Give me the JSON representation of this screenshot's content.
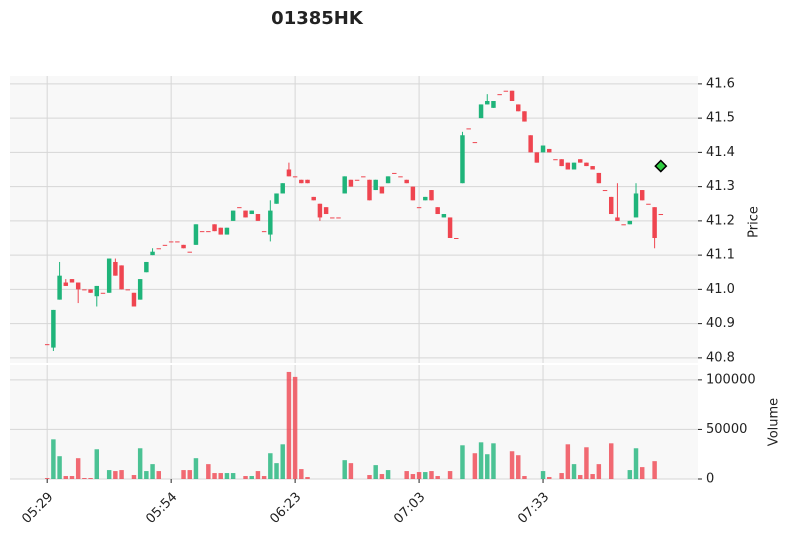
{
  "chart_data": {
    "type": "candlestick",
    "title": "01385HK",
    "price_label": "Price",
    "volume_label": "Volume",
    "up_color": "#1fb47a",
    "down_color": "#ef4550",
    "open": [
      40.84,
      40.83,
      40.97,
      41.02,
      41.03,
      41.02,
      41.0,
      41.0,
      40.98,
      40.99,
      40.99,
      41.08,
      41.07,
      41.0,
      40.99,
      40.97,
      41.05,
      41.1,
      41.12,
      41.13,
      41.14,
      41.14,
      41.13,
      41.11,
      41.13,
      41.17,
      41.17,
      41.19,
      41.18,
      41.16,
      41.2,
      41.24,
      41.23,
      41.22,
      41.22,
      41.17,
      41.16,
      41.25,
      41.28,
      41.35,
      41.33,
      41.32,
      41.32,
      41.27,
      41.25,
      41.24,
      41.21,
      41.21,
      41.28,
      41.32,
      41.32,
      41.33,
      41.32,
      41.29,
      41.3,
      41.31,
      41.34,
      41.33,
      41.32,
      41.3,
      41.24,
      41.26,
      41.29,
      41.24,
      41.21,
      41.21,
      41.15,
      41.31,
      41.47,
      41.43,
      41.5,
      41.54,
      41.53,
      41.57,
      41.58,
      41.58,
      41.54,
      41.52,
      41.45,
      41.4,
      41.4,
      41.41,
      41.38,
      41.38,
      41.37,
      41.35,
      41.38,
      41.37,
      41.36,
      41.34,
      41.29,
      41.27,
      41.21,
      41.19,
      41.19,
      41.21,
      41.29,
      41.25,
      41.24,
      41.22
    ],
    "high": [
      40.84,
      40.94,
      41.08,
      41.03,
      41.03,
      41.02,
      41.0,
      41.0,
      41.01,
      40.99,
      41.09,
      41.09,
      41.07,
      41.0,
      40.99,
      41.03,
      41.08,
      41.12,
      41.12,
      41.13,
      41.14,
      41.14,
      41.13,
      41.11,
      41.19,
      41.17,
      41.17,
      41.19,
      41.18,
      41.18,
      41.23,
      41.24,
      41.23,
      41.23,
      41.22,
      41.17,
      41.26,
      41.28,
      41.31,
      41.37,
      41.33,
      41.32,
      41.32,
      41.27,
      41.25,
      41.24,
      41.21,
      41.21,
      41.33,
      41.32,
      41.32,
      41.33,
      41.32,
      41.32,
      41.3,
      41.33,
      41.34,
      41.33,
      41.32,
      41.3,
      41.24,
      41.27,
      41.29,
      41.24,
      41.22,
      41.21,
      41.15,
      41.46,
      41.47,
      41.43,
      41.54,
      41.57,
      41.55,
      41.57,
      41.58,
      41.58,
      41.54,
      41.52,
      41.45,
      41.4,
      41.42,
      41.41,
      41.38,
      41.38,
      41.37,
      41.37,
      41.38,
      41.37,
      41.36,
      41.34,
      41.29,
      41.27,
      41.31,
      41.19,
      41.2,
      41.31,
      41.29,
      41.25,
      41.24,
      41.22
    ],
    "low": [
      40.84,
      40.82,
      40.97,
      41.01,
      41.02,
      40.96,
      41.0,
      40.99,
      40.95,
      40.99,
      40.99,
      41.04,
      41.0,
      41.0,
      40.95,
      40.97,
      41.05,
      41.1,
      41.12,
      41.13,
      41.14,
      41.14,
      41.12,
      41.11,
      41.13,
      41.17,
      41.17,
      41.17,
      41.16,
      41.16,
      41.2,
      41.24,
      41.21,
      41.22,
      41.2,
      41.17,
      41.14,
      41.25,
      41.28,
      41.33,
      41.33,
      41.31,
      41.31,
      41.26,
      41.2,
      41.22,
      41.21,
      41.21,
      41.28,
      41.3,
      41.32,
      41.33,
      41.26,
      41.29,
      41.28,
      41.31,
      41.34,
      41.33,
      41.31,
      41.26,
      41.24,
      41.26,
      41.26,
      41.22,
      41.21,
      41.15,
      41.15,
      41.31,
      41.47,
      41.43,
      41.5,
      41.54,
      41.53,
      41.57,
      41.58,
      41.55,
      41.52,
      41.49,
      41.4,
      41.37,
      41.4,
      41.4,
      41.38,
      41.36,
      41.35,
      41.35,
      41.37,
      41.36,
      41.35,
      41.31,
      41.29,
      41.22,
      41.2,
      41.19,
      41.19,
      41.21,
      41.26,
      41.25,
      41.12,
      41.22
    ],
    "close": [
      40.84,
      40.94,
      41.04,
      41.01,
      41.02,
      41.0,
      41.0,
      40.99,
      41.01,
      40.99,
      41.09,
      41.04,
      41.0,
      41.0,
      40.95,
      41.03,
      41.08,
      41.11,
      41.12,
      41.13,
      41.14,
      41.14,
      41.12,
      41.11,
      41.19,
      41.17,
      41.17,
      41.17,
      41.16,
      41.18,
      41.23,
      41.24,
      41.21,
      41.23,
      41.2,
      41.17,
      41.23,
      41.28,
      41.31,
      41.33,
      41.33,
      41.31,
      41.31,
      41.26,
      41.21,
      41.22,
      41.21,
      41.21,
      41.33,
      41.3,
      41.32,
      41.33,
      41.26,
      41.32,
      41.28,
      41.33,
      41.34,
      41.33,
      41.31,
      41.26,
      41.24,
      41.27,
      41.26,
      41.22,
      41.22,
      41.15,
      41.15,
      41.45,
      41.47,
      41.43,
      41.54,
      41.55,
      41.55,
      41.57,
      41.58,
      41.55,
      41.52,
      41.49,
      41.4,
      41.37,
      41.42,
      41.4,
      41.38,
      41.36,
      41.35,
      41.37,
      41.37,
      41.36,
      41.35,
      41.31,
      41.29,
      41.22,
      41.2,
      41.19,
      41.2,
      41.28,
      41.26,
      41.25,
      41.15,
      41.22
    ],
    "volume": [
      1000,
      40000,
      23000,
      3000,
      3000,
      21000,
      1000,
      1000,
      30000,
      0,
      9000,
      8000,
      9000,
      0,
      4000,
      31000,
      8000,
      15000,
      8000,
      0,
      0,
      0,
      9000,
      9000,
      21000,
      0,
      15000,
      6000,
      6000,
      6000,
      6000,
      0,
      3000,
      3000,
      8000,
      3000,
      26000,
      16000,
      35000,
      108000,
      103000,
      10000,
      2000,
      0,
      0,
      0,
      0,
      0,
      19000,
      16000,
      0,
      0,
      4000,
      14000,
      5000,
      9000,
      0,
      0,
      8000,
      5000,
      7000,
      7000,
      8000,
      3000,
      0,
      8000,
      0,
      34000,
      0,
      26000,
      37000,
      25000,
      36000,
      0,
      0,
      28000,
      24000,
      3000,
      0,
      0,
      8000,
      2000,
      0,
      6000,
      35000,
      15000,
      4000,
      32000,
      5000,
      15000,
      0,
      36000,
      0,
      0,
      9000,
      31000,
      12000,
      0,
      18000,
      0
    ],
    "markers": {
      "x": [
        99
      ],
      "values": [
        41.36
      ],
      "color": "#2ecc40"
    },
    "xlim": [
      -6,
      105
    ],
    "xticks": [
      {
        "value": 0,
        "label": "05:29"
      },
      {
        "value": 20,
        "label": "05:54"
      },
      {
        "value": 40,
        "label": "06:23"
      },
      {
        "value": 60,
        "label": "07:03"
      },
      {
        "value": 80,
        "label": "07:33"
      }
    ],
    "ylim": [
      40.785,
      41.623
    ],
    "yticks": [
      40.8,
      40.9,
      {
        "value": 41,
        "label": "41.0"
      },
      41.1,
      41.2,
      41.3,
      41.4,
      41.5,
      41.6
    ],
    "volume_ylim": [
      0,
      115000
    ],
    "volume_yticks": [
      0,
      50000,
      100000
    ],
    "grid": true
  }
}
